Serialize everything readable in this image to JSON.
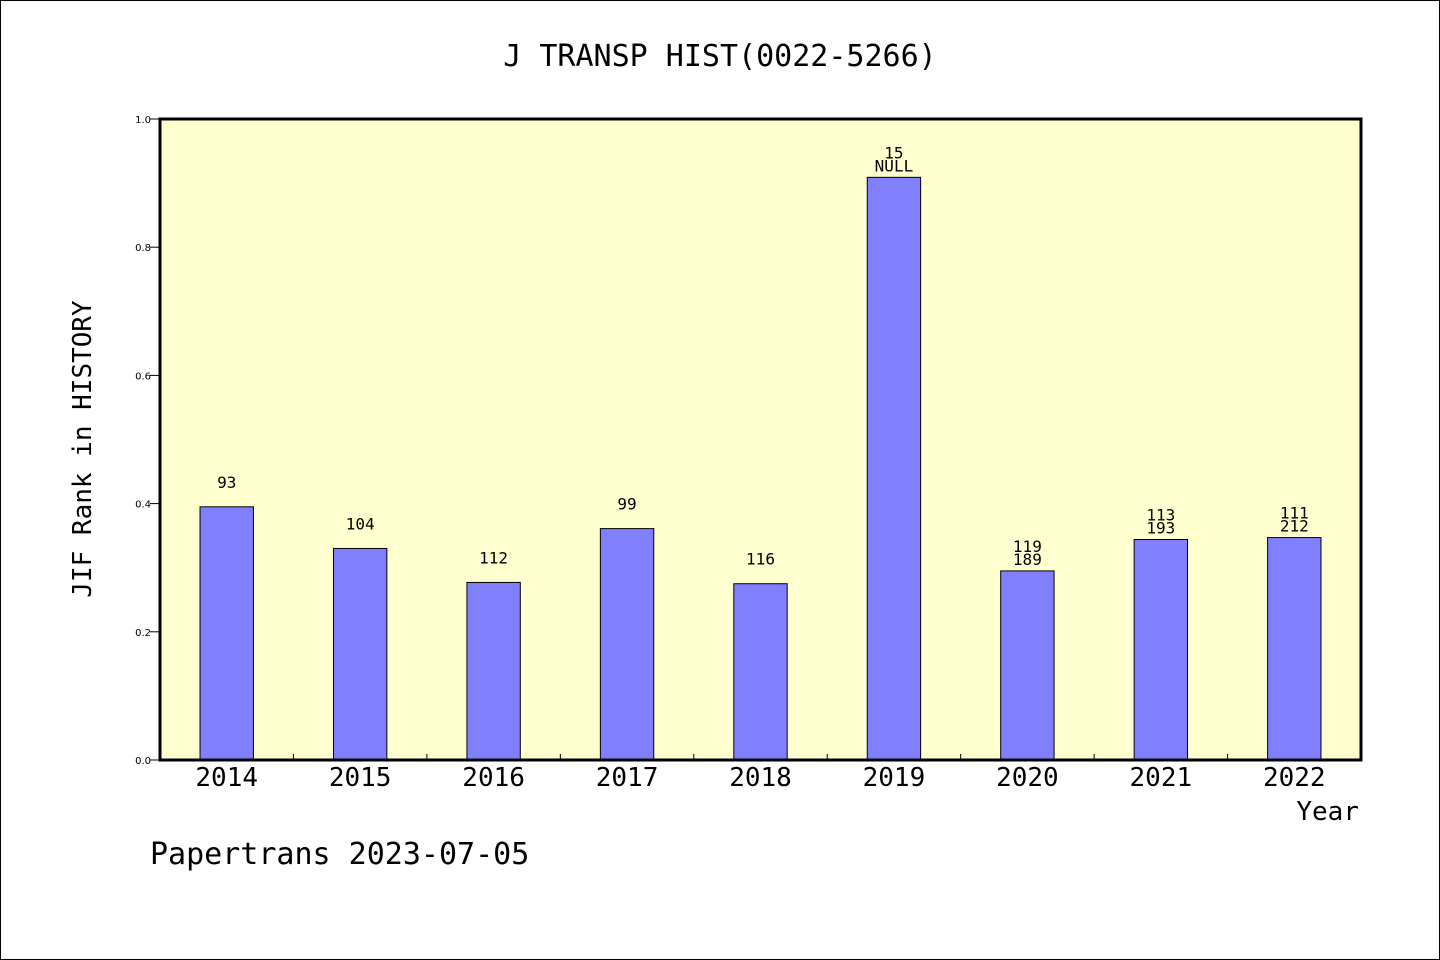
{
  "chart_data": {
    "type": "bar",
    "title": "J TRANSP HIST(0022-5266)",
    "xlabel": "Year",
    "ylabel": "JIF Rank in HISTORY",
    "ylim": [
      0,
      1.0
    ],
    "yticks": [
      "0.0",
      "0.2",
      "0.4",
      "0.6",
      "0.8",
      "1.0"
    ],
    "categories": [
      "2014",
      "2015",
      "2016",
      "2017",
      "2018",
      "2019",
      "2020",
      "2021",
      "2022"
    ],
    "values": [
      0.395,
      0.33,
      0.277,
      0.361,
      0.275,
      0.909,
      0.295,
      0.344,
      0.347
    ],
    "labels_upper": [
      "",
      "",
      "",
      "",
      "",
      "15",
      "119",
      "113",
      "111"
    ],
    "labels_lower": [
      "93",
      "104",
      "112",
      "99",
      "116",
      "NULL",
      "189",
      "193",
      "212"
    ],
    "grid": false,
    "colors": {
      "plot_background": "#ffffd0",
      "bar_fill": "#8080ff",
      "bar_stroke": "#000000"
    }
  },
  "footer": {
    "text": "Papertrans 2023-07-05"
  }
}
